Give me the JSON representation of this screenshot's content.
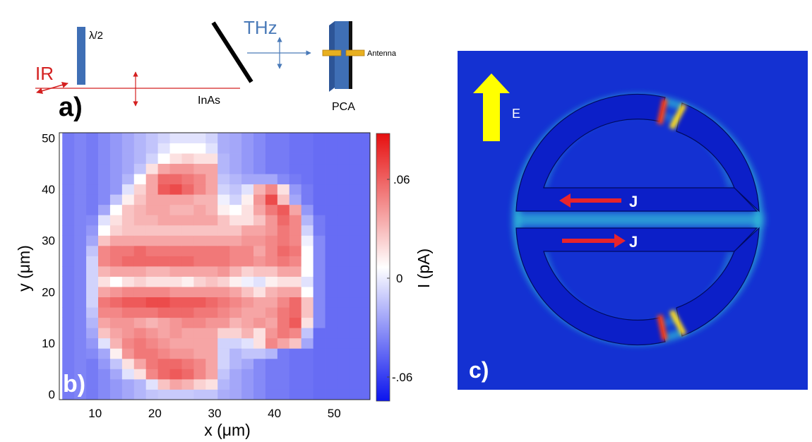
{
  "panel_a": {
    "panel_label": "a)",
    "ir_label": "IR",
    "halfwave_label": "λ/2",
    "thz_label": "THz",
    "crystal_label": "InAs",
    "detector_label": "PCA",
    "antenna_label": "Antenna",
    "colors": {
      "ir": "#d42020",
      "thz": "#4a7ab8",
      "plate": "#3f6fb5",
      "antenna": "#e8b020"
    }
  },
  "panel_b": {
    "panel_label": "b)",
    "colorbar_label": "I (pA)",
    "colorbar_ticks": [
      ".06",
      "0",
      "-.06"
    ],
    "colors": {
      "low": "#0b14ee",
      "mid": "#ffffff",
      "high": "#e60f0f"
    }
  },
  "panel_c": {
    "panel_label": "c)",
    "field_label": "E",
    "current_label_top": "J",
    "current_label_bottom": "J",
    "colors": {
      "background": "#1431d2",
      "metal": "#0c1fc8",
      "field": "#ffff00",
      "current": "#e8242c",
      "hot": "#ff4018",
      "glow": "#36d6d8"
    }
  },
  "chart_data": {
    "type": "heatmap",
    "xlabel": "x (μm)",
    "ylabel": "y (μm)",
    "colorbar_label": "I (pA)",
    "xlim": [
      4,
      56
    ],
    "ylim": [
      -1,
      51
    ],
    "x_ticks": [
      10,
      20,
      30,
      40,
      50
    ],
    "y_ticks": [
      0,
      10,
      20,
      30,
      40,
      50
    ],
    "colorbar_range": [
      -0.08,
      0.08
    ],
    "colorbar_tick_values": [
      0.06,
      0,
      -0.06
    ],
    "x": [
      5.5,
      7.5,
      9.5,
      11.5,
      13.5,
      15.5,
      17.5,
      19.5,
      21.5,
      23.5,
      25.5,
      27.5,
      29.5,
      31.5,
      33.5,
      35.5,
      37.5,
      39.5,
      41.5,
      43.5,
      45.5,
      47.5,
      49.5,
      51.5,
      53.5,
      55.5
    ],
    "y": [
      0,
      2,
      4,
      6,
      8,
      10,
      12,
      14,
      16,
      18,
      20,
      22,
      24,
      26,
      28,
      30,
      32,
      34,
      36,
      38,
      40,
      42,
      44,
      46,
      48,
      50
    ],
    "z": [
      [
        -0.045,
        -0.042,
        -0.045,
        -0.04,
        -0.035,
        -0.03,
        -0.025,
        -0.02,
        -0.018,
        -0.018,
        -0.018,
        -0.02,
        -0.02,
        -0.028,
        -0.03,
        -0.035,
        -0.04,
        -0.045,
        -0.045,
        -0.048,
        -0.048,
        -0.05,
        -0.05,
        -0.05,
        -0.05,
        -0.05
      ],
      [
        -0.045,
        -0.042,
        -0.045,
        -0.04,
        -0.035,
        -0.03,
        -0.025,
        -0.01,
        0.02,
        0.03,
        0.025,
        0.015,
        0.01,
        -0.025,
        -0.03,
        -0.035,
        -0.04,
        -0.045,
        -0.045,
        -0.048,
        -0.048,
        -0.05,
        -0.05,
        -0.05,
        -0.05,
        -0.05
      ],
      [
        -0.045,
        -0.042,
        -0.045,
        -0.04,
        -0.03,
        -0.01,
        0.01,
        0.04,
        0.05,
        0.055,
        0.05,
        0.04,
        0.03,
        -0.02,
        -0.03,
        -0.035,
        -0.04,
        -0.045,
        -0.045,
        -0.048,
        -0.048,
        -0.05,
        -0.05,
        -0.05,
        -0.05,
        -0.05
      ],
      [
        -0.045,
        -0.042,
        -0.045,
        -0.035,
        -0.02,
        0.01,
        0.03,
        0.045,
        0.05,
        0.05,
        0.045,
        0.04,
        0.03,
        -0.015,
        -0.025,
        -0.03,
        -0.04,
        -0.045,
        -0.045,
        -0.048,
        -0.048,
        -0.05,
        -0.05,
        -0.05,
        -0.05,
        -0.05
      ],
      [
        -0.045,
        -0.042,
        -0.04,
        -0.03,
        0.005,
        0.035,
        0.045,
        0.045,
        0.04,
        0.035,
        0.035,
        0.03,
        0.03,
        -0.015,
        -0.025,
        -0.02,
        -0.02,
        -0.025,
        -0.045,
        -0.048,
        -0.048,
        -0.05,
        -0.05,
        -0.05,
        -0.05,
        -0.05
      ],
      [
        -0.045,
        -0.042,
        -0.035,
        -0.01,
        0.025,
        0.04,
        0.045,
        0.04,
        0.035,
        0.03,
        0.03,
        0.03,
        0.03,
        -0.015,
        -0.015,
        -0.01,
        0.01,
        0.04,
        0.03,
        0.02,
        -0.03,
        -0.05,
        -0.05,
        -0.05,
        -0.05,
        -0.05
      ],
      [
        -0.045,
        -0.042,
        -0.03,
        0.02,
        0.03,
        0.035,
        0.04,
        0.035,
        0.03,
        0.035,
        0.03,
        0.03,
        0.03,
        0.015,
        0.015,
        0.025,
        0.01,
        0.035,
        0.045,
        0.04,
        -0.02,
        -0.05,
        -0.05,
        -0.05,
        -0.05,
        -0.05
      ],
      [
        -0.045,
        -0.042,
        -0.025,
        0.03,
        0.035,
        0.035,
        0.03,
        0.025,
        0.03,
        0.035,
        0.04,
        0.04,
        0.035,
        0.035,
        0.025,
        0.03,
        0.035,
        0.03,
        0.045,
        0.055,
        0.01,
        -0.04,
        -0.05,
        -0.05,
        -0.05,
        -0.05
      ],
      [
        -0.045,
        -0.042,
        -0.02,
        0.04,
        0.04,
        0.045,
        0.045,
        0.045,
        0.05,
        0.05,
        0.05,
        0.045,
        0.045,
        0.04,
        0.035,
        0.03,
        0.03,
        0.035,
        0.045,
        0.05,
        0.02,
        -0.04,
        -0.05,
        -0.05,
        -0.05,
        -0.05
      ],
      [
        -0.045,
        -0.042,
        -0.015,
        0.045,
        0.05,
        0.055,
        0.055,
        0.06,
        0.06,
        0.055,
        0.055,
        0.055,
        0.05,
        0.045,
        0.04,
        0.035,
        0.03,
        0.03,
        0.04,
        0.05,
        0.02,
        -0.04,
        -0.05,
        -0.05,
        -0.05,
        -0.05
      ],
      [
        -0.045,
        -0.042,
        -0.015,
        0.03,
        0.035,
        0.04,
        0.04,
        0.04,
        0.04,
        0.035,
        0.035,
        0.035,
        0.035,
        0.035,
        0.03,
        0.02,
        0.01,
        0.025,
        0.03,
        0.03,
        0.0,
        -0.04,
        -0.05,
        -0.05,
        -0.05,
        -0.05
      ],
      [
        -0.045,
        -0.042,
        -0.015,
        0.01,
        0.0,
        0.01,
        0.015,
        0.01,
        0.01,
        0.01,
        0.005,
        0.015,
        0.02,
        0.015,
        0.005,
        -0.005,
        -0.01,
        0.005,
        0.01,
        0.01,
        -0.01,
        -0.04,
        -0.05,
        -0.05,
        -0.05,
        -0.05
      ],
      [
        -0.045,
        -0.042,
        -0.015,
        0.025,
        0.03,
        0.03,
        0.03,
        0.025,
        0.025,
        0.03,
        0.03,
        0.03,
        0.03,
        0.035,
        0.025,
        0.015,
        0.02,
        0.02,
        0.03,
        0.03,
        0.0,
        -0.04,
        -0.05,
        -0.05,
        -0.05,
        -0.05
      ],
      [
        -0.045,
        -0.042,
        -0.015,
        0.04,
        0.045,
        0.05,
        0.05,
        0.05,
        0.05,
        0.05,
        0.05,
        0.045,
        0.045,
        0.045,
        0.04,
        0.04,
        0.035,
        0.04,
        0.045,
        0.04,
        0.0,
        -0.04,
        -0.05,
        -0.05,
        -0.05,
        -0.05
      ],
      [
        -0.045,
        -0.042,
        -0.02,
        0.04,
        0.045,
        0.045,
        0.05,
        0.045,
        0.045,
        0.045,
        0.045,
        0.045,
        0.045,
        0.045,
        0.04,
        0.04,
        0.03,
        0.04,
        0.05,
        0.045,
        0.0,
        -0.04,
        -0.05,
        -0.05,
        -0.05,
        -0.05
      ],
      [
        -0.045,
        -0.042,
        -0.03,
        0.02,
        0.03,
        0.03,
        0.03,
        0.03,
        0.03,
        0.03,
        0.03,
        0.03,
        0.03,
        0.03,
        0.03,
        0.035,
        0.035,
        0.04,
        0.045,
        0.04,
        -0.005,
        -0.04,
        -0.05,
        -0.05,
        -0.05,
        -0.05
      ],
      [
        -0.045,
        -0.042,
        -0.035,
        0.0,
        0.015,
        0.02,
        0.02,
        0.02,
        0.02,
        0.02,
        0.02,
        0.02,
        0.02,
        0.02,
        0.02,
        0.03,
        0.03,
        0.035,
        0.045,
        0.04,
        -0.015,
        -0.045,
        -0.05,
        -0.05,
        -0.05,
        -0.05
      ],
      [
        -0.045,
        -0.042,
        -0.04,
        -0.01,
        0.01,
        0.02,
        0.025,
        0.025,
        0.03,
        0.03,
        0.03,
        0.03,
        0.03,
        0.02,
        0.01,
        0.01,
        0.02,
        0.035,
        0.05,
        0.04,
        -0.025,
        -0.045,
        -0.05,
        -0.05,
        -0.05,
        -0.05
      ],
      [
        -0.045,
        -0.042,
        -0.045,
        -0.03,
        0.0,
        0.02,
        0.025,
        0.03,
        0.03,
        0.025,
        0.025,
        0.03,
        0.025,
        0.005,
        0.0,
        0.01,
        0.03,
        0.045,
        0.055,
        0.03,
        -0.035,
        -0.05,
        -0.05,
        -0.05,
        -0.05,
        -0.05
      ],
      [
        -0.045,
        -0.042,
        -0.045,
        -0.04,
        -0.02,
        0.005,
        0.02,
        0.03,
        0.03,
        0.03,
        0.03,
        0.025,
        0.025,
        -0.005,
        -0.015,
        0.005,
        0.035,
        0.06,
        0.02,
        -0.03,
        -0.045,
        -0.05,
        -0.05,
        -0.05,
        -0.05,
        -0.05
      ],
      [
        -0.045,
        -0.042,
        -0.045,
        -0.04,
        -0.035,
        -0.01,
        0.015,
        0.03,
        0.055,
        0.06,
        0.05,
        0.04,
        0.03,
        -0.015,
        -0.02,
        -0.01,
        0.025,
        0.04,
        0.01,
        -0.035,
        -0.045,
        -0.05,
        -0.05,
        -0.05,
        -0.05,
        -0.05
      ],
      [
        -0.045,
        -0.042,
        -0.045,
        -0.04,
        -0.035,
        -0.025,
        0.0,
        0.03,
        0.05,
        0.05,
        0.045,
        0.04,
        0.03,
        -0.02,
        -0.025,
        -0.03,
        -0.03,
        -0.03,
        -0.04,
        -0.045,
        -0.048,
        -0.05,
        -0.05,
        -0.05,
        -0.05,
        -0.05
      ],
      [
        -0.045,
        -0.042,
        -0.045,
        -0.04,
        -0.035,
        -0.03,
        -0.02,
        0.01,
        0.03,
        0.035,
        0.035,
        0.03,
        0.03,
        -0.025,
        -0.03,
        -0.035,
        -0.04,
        -0.045,
        -0.045,
        -0.048,
        -0.048,
        -0.05,
        -0.05,
        -0.05,
        -0.05,
        -0.05
      ],
      [
        -0.045,
        -0.042,
        -0.045,
        -0.04,
        -0.035,
        -0.03,
        -0.025,
        -0.015,
        0.0,
        0.01,
        0.015,
        0.01,
        0.01,
        -0.025,
        -0.03,
        -0.035,
        -0.04,
        -0.045,
        -0.045,
        -0.048,
        -0.048,
        -0.05,
        -0.05,
        -0.05,
        -0.05,
        -0.05
      ],
      [
        -0.045,
        -0.042,
        -0.045,
        -0.04,
        -0.035,
        -0.03,
        -0.025,
        -0.02,
        -0.01,
        0.0,
        0.0,
        0.0,
        -0.01,
        -0.028,
        -0.03,
        -0.035,
        -0.04,
        -0.045,
        -0.045,
        -0.048,
        -0.048,
        -0.05,
        -0.05,
        -0.05,
        -0.05,
        -0.05
      ],
      [
        -0.045,
        -0.042,
        -0.045,
        -0.04,
        -0.035,
        -0.03,
        -0.025,
        -0.02,
        -0.015,
        -0.01,
        -0.01,
        -0.01,
        -0.015,
        -0.028,
        -0.03,
        -0.035,
        -0.04,
        -0.045,
        -0.045,
        -0.048,
        -0.048,
        -0.05,
        -0.05,
        -0.05,
        -0.05,
        -0.05
      ]
    ]
  }
}
